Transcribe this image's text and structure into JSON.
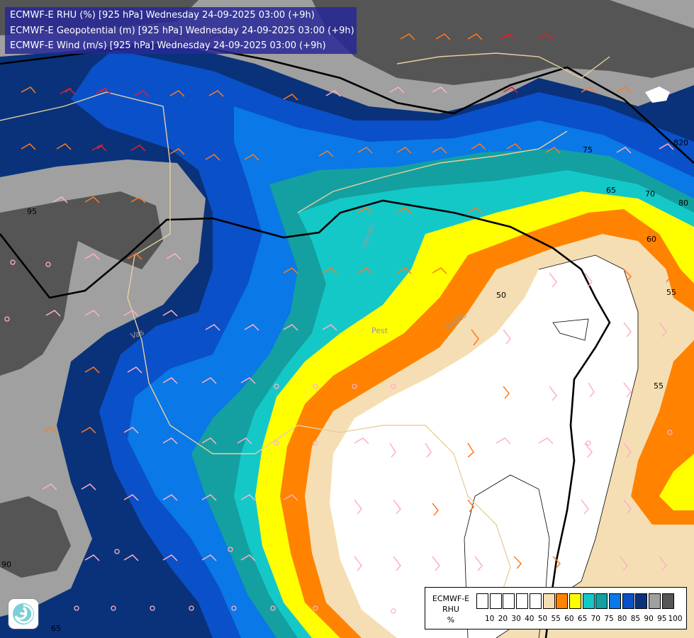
{
  "header": {
    "lines": [
      "ECMWF-E RHU (%) [925 hPa] Wednesday 24-09-2025 03:00 (+9h)",
      "ECMWF-E Geopotential (m) [925 hPa] Wednesday 24-09-2025 03:00 (+9h)",
      "ECMWF-E Wind (m/s) [925 hPa] Wednesday 24-09-2025 03:00 (+9h)"
    ]
  },
  "legend": {
    "title_lines": [
      "ECMWF-E",
      "RHU",
      "%"
    ],
    "ticks": [
      "10",
      "20",
      "30",
      "40",
      "50",
      "55",
      "60",
      "65",
      "70",
      "75",
      "80",
      "85",
      "90",
      "95",
      "100"
    ],
    "colors": [
      "#ffffff",
      "#ffffff",
      "#ffffff",
      "#ffffff",
      "#ffffff",
      "#f5deb3",
      "#ff8200",
      "#ffff00",
      "#14c8c8",
      "#14a0a0",
      "#0a78e6",
      "#0a50c8",
      "#0a327a",
      "#a0a0a0",
      "#555555"
    ]
  },
  "map_labels": {
    "contours": [
      "95",
      "75",
      "65",
      "70",
      "80",
      "60",
      "55",
      "50",
      "55",
      "65",
      "90",
      "820"
    ],
    "places": [
      "Heves",
      "Pest",
      "Békés",
      "Vas"
    ]
  },
  "colors": {
    "rhu_95_100": "#555555",
    "rhu_90_95": "#a0a0a0",
    "rhu_85_90": "#0a327a",
    "rhu_80_85": "#0a50c8",
    "rhu_75_80": "#0a78e6",
    "rhu_70_75": "#14a0a0",
    "rhu_65_70": "#14c8c8",
    "rhu_60_65": "#ffff00",
    "rhu_55_60": "#ff8200",
    "rhu_50_55": "#f5deb3",
    "rhu_below_50": "#ffffff",
    "header_bg": "#2828a0"
  },
  "icons": {
    "logo": "ecmwf-swirl-logo"
  }
}
